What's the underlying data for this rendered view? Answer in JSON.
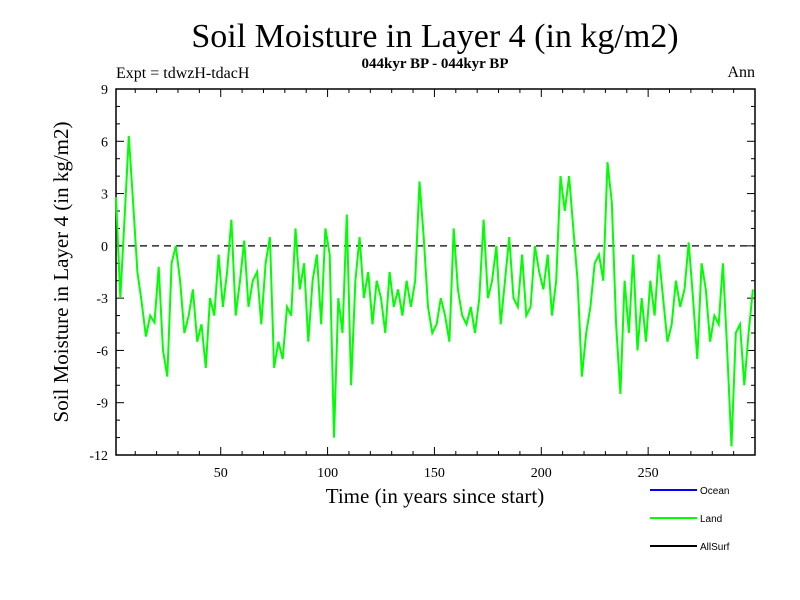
{
  "chart_data": {
    "type": "line",
    "title": "Soil Moisture in Layer 4 (in kg/m2)",
    "subtitle": "044kyr BP - 044kyr BP",
    "expt_label": "Expt = tdwzH-tdacH",
    "season_label": "Ann",
    "xlabel": "Time (in years since start)",
    "ylabel": "Soil Moisture in Layer 4 (in kg/m2)",
    "xlim": [
      1,
      300
    ],
    "ylim": [
      -12,
      9
    ],
    "xticks": [
      50,
      100,
      150,
      200,
      250
    ],
    "yticks": [
      -12,
      -9,
      -6,
      -3,
      0,
      3,
      6,
      9
    ],
    "zero_line": "dashed",
    "legend": [
      {
        "name": "Ocean",
        "color": "#0000ff"
      },
      {
        "name": "Land",
        "color": "#00ff00"
      },
      {
        "name": "AllSurf",
        "color": "#000000"
      }
    ],
    "series": [
      {
        "name": "Land",
        "color": "#00ff00",
        "x": [
          1,
          3,
          5,
          7,
          9,
          11,
          13,
          15,
          17,
          19,
          21,
          23,
          25,
          27,
          29,
          31,
          33,
          35,
          37,
          39,
          41,
          43,
          45,
          47,
          49,
          51,
          53,
          55,
          57,
          59,
          61,
          63,
          65,
          67,
          69,
          71,
          73,
          75,
          77,
          79,
          81,
          83,
          85,
          87,
          89,
          91,
          93,
          95,
          97,
          99,
          101,
          103,
          105,
          107,
          109,
          111,
          113,
          115,
          117,
          119,
          121,
          123,
          125,
          127,
          129,
          131,
          133,
          135,
          137,
          139,
          141,
          143,
          145,
          147,
          149,
          151,
          153,
          155,
          157,
          159,
          161,
          163,
          165,
          167,
          169,
          171,
          173,
          175,
          177,
          179,
          181,
          183,
          185,
          187,
          189,
          191,
          193,
          195,
          197,
          199,
          201,
          203,
          205,
          207,
          209,
          211,
          213,
          215,
          217,
          219,
          221,
          223,
          225,
          227,
          229,
          231,
          233,
          235,
          237,
          239,
          241,
          243,
          245,
          247,
          249,
          251,
          253,
          255,
          257,
          259,
          261,
          263,
          265,
          267,
          269,
          271,
          273,
          275,
          277,
          279,
          281,
          283,
          285,
          287,
          289,
          291,
          293,
          295,
          297,
          299
        ],
        "values": [
          2.8,
          -3.0,
          1.5,
          6.3,
          2.5,
          -1.5,
          -3.2,
          -5.2,
          -4.0,
          -4.4,
          -1.2,
          -6.0,
          -7.5,
          -1.0,
          0.0,
          -2.0,
          -5.0,
          -4.0,
          -2.5,
          -5.5,
          -4.5,
          -7.0,
          -3.0,
          -4.0,
          -0.5,
          -3.5,
          -1.5,
          1.5,
          -4.0,
          -2.0,
          0.3,
          -3.5,
          -2.0,
          -1.5,
          -4.5,
          -1.0,
          0.5,
          -7.0,
          -5.5,
          -6.5,
          -3.5,
          -4.0,
          1.0,
          -2.5,
          -1.0,
          -5.5,
          -2.0,
          -0.5,
          -4.5,
          1.0,
          -0.5,
          -11.0,
          -3.0,
          -5.0,
          1.8,
          -8.0,
          -2.0,
          0.5,
          -3.0,
          -1.5,
          -4.5,
          -2.0,
          -3.0,
          -5.0,
          -1.5,
          -3.5,
          -2.5,
          -4.0,
          -2.0,
          -3.5,
          -2.0,
          3.7,
          0.5,
          -3.5,
          -5.0,
          -4.5,
          -3.0,
          -4.0,
          -5.5,
          1.0,
          -2.5,
          -4.0,
          -4.5,
          -3.5,
          -5.0,
          -3.0,
          1.5,
          -3.0,
          -2.0,
          0.0,
          -4.5,
          -2.0,
          0.5,
          -3.0,
          -3.5,
          -0.5,
          -4.0,
          -3.5,
          0.0,
          -1.5,
          -2.5,
          -0.5,
          -4.0,
          -2.0,
          4.0,
          2.0,
          4.0,
          1.0,
          -2.0,
          -7.5,
          -5.0,
          -3.5,
          -1.0,
          -0.5,
          -2.0,
          4.8,
          2.5,
          -4.5,
          -8.5,
          -2.0,
          -5.0,
          -0.5,
          -6.0,
          -3.0,
          -5.5,
          -2.0,
          -4.0,
          -0.5,
          -3.0,
          -5.5,
          -4.5,
          -2.0,
          -3.5,
          -2.5,
          0.2,
          -3.0,
          -6.5,
          -1.0,
          -2.5,
          -5.5,
          -4.0,
          -4.5,
          -1.0,
          -6.0,
          -11.5,
          -5.0,
          -4.5,
          -8.0,
          -5.0,
          -2.5
        ]
      }
    ]
  }
}
